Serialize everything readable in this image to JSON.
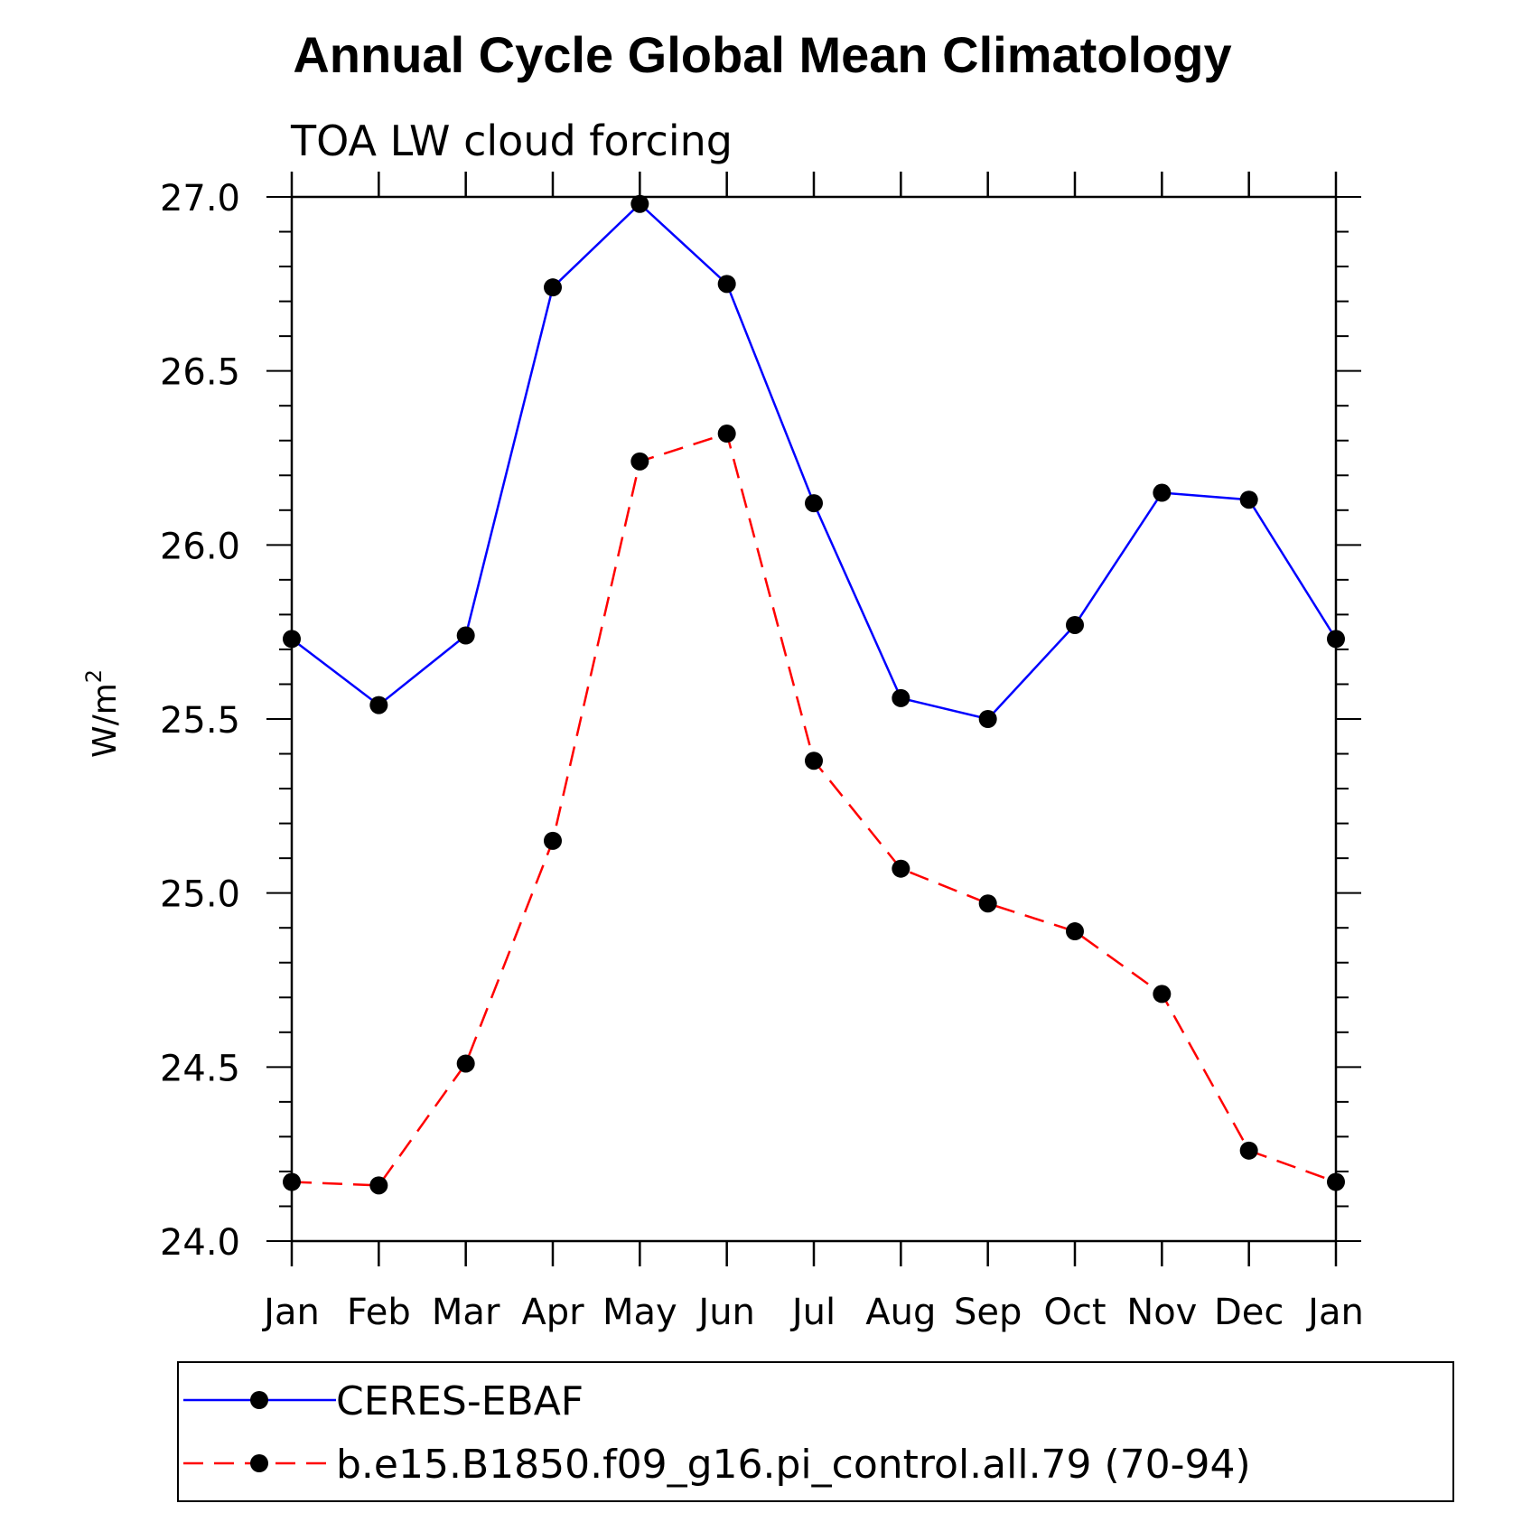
{
  "chart_data": {
    "type": "line",
    "title": "Annual Cycle Global Mean Climatology",
    "subtitle": "TOA LW cloud forcing",
    "ylabel": "W/m",
    "ylabel_superscript": "2",
    "xlabel": "",
    "categories": [
      "Jan",
      "Feb",
      "Mar",
      "Apr",
      "May",
      "Jun",
      "Jul",
      "Aug",
      "Sep",
      "Oct",
      "Nov",
      "Dec",
      "Jan"
    ],
    "ylim": [
      24.0,
      27.0
    ],
    "yticks": [
      "24.0",
      "24.5",
      "25.0",
      "25.5",
      "26.0",
      "26.5",
      "27.0"
    ],
    "grid": false,
    "legend_position": "bottom",
    "series": [
      {
        "name": "CERES-EBAF",
        "color": "#0000ff",
        "line_style": "solid",
        "marker": "filled-circle",
        "values": [
          25.73,
          25.54,
          25.74,
          26.74,
          26.98,
          26.75,
          26.12,
          25.56,
          25.5,
          25.77,
          26.15,
          26.13,
          25.73
        ]
      },
      {
        "name": "b.e15.B1850.f09_g16.pi_control.all.79 (70-94)",
        "color": "#ff0000",
        "line_style": "dashed",
        "marker": "filled-circle",
        "values": [
          24.17,
          24.16,
          24.51,
          25.15,
          26.24,
          26.32,
          25.38,
          25.07,
          24.97,
          24.89,
          24.71,
          24.26,
          24.17
        ]
      }
    ]
  }
}
